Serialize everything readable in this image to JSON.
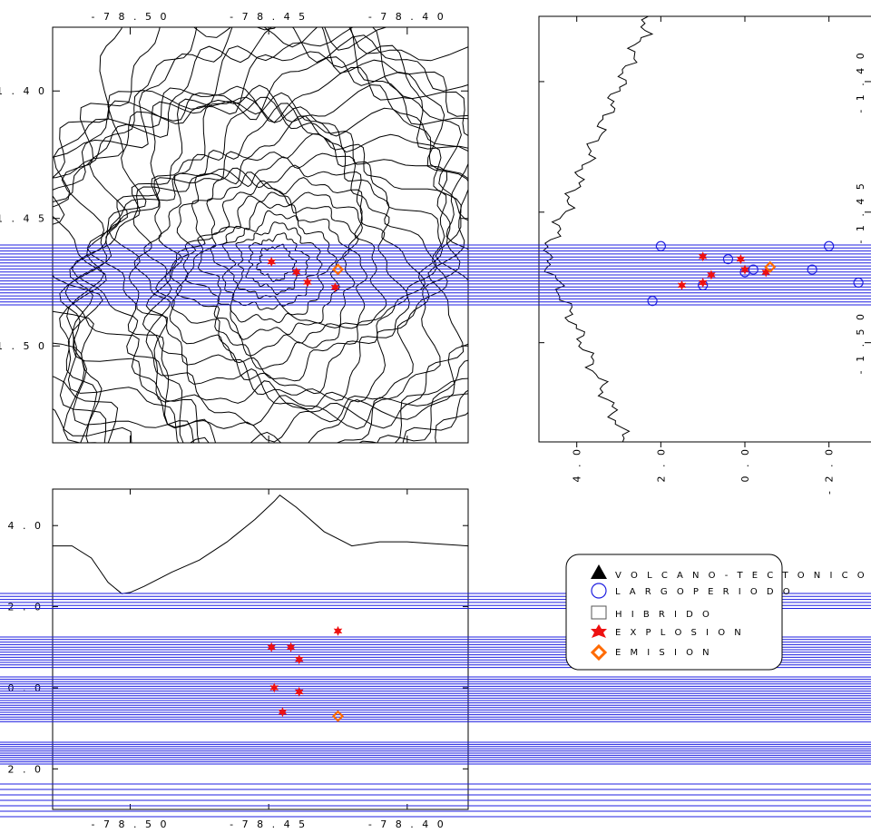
{
  "chart_data": [
    {
      "panel": "map",
      "type": "scatter",
      "title": "",
      "xlabel": "",
      "ylabel": "",
      "xlim": [
        -78.528,
        -78.378
      ],
      "ylim": [
        -1.538,
        -1.375
      ],
      "x_ticks": [
        "- 7 8 . 5 0",
        "- 7 8 . 4 5",
        "- 7 8 . 4 0"
      ],
      "x_tick_values": [
        -78.5,
        -78.45,
        -78.4
      ],
      "y_ticks": [
        "- 1 . 4 0",
        "- 1 . 4 5",
        "- 1 . 5 0"
      ],
      "y_tick_values": [
        -1.4,
        -1.45,
        -1.5
      ],
      "grid": false,
      "contour_summit": [
        -78.448,
        -1.467
      ],
      "contour_levels": 26,
      "series": [
        {
          "name": "E X P L O S I O N",
          "symbol": "star",
          "x": [
            -78.449,
            -78.44,
            -78.436,
            -78.426
          ],
          "y": [
            -1.467,
            -1.471,
            -1.475,
            -1.477
          ]
        },
        {
          "name": "E M I S I O N",
          "symbol": "diamond",
          "x": [
            -78.425
          ],
          "y": [
            -1.47
          ]
        }
      ]
    },
    {
      "panel": "depth-latitude",
      "type": "scatter",
      "title": "",
      "xlim": [
        4.9,
        -3.0
      ],
      "ylim": [
        -1.538,
        -1.375
      ],
      "x_ticks": [
        "4 . 0",
        "2 . 0",
        "0 . 0",
        "- 2 . 0"
      ],
      "x_tick_values": [
        4.0,
        2.0,
        0.0,
        -2.0
      ],
      "y_ticks": [
        "- 1 . 4 0",
        "- 1 . 4 5",
        "- 1 . 5 0"
      ],
      "y_tick_values": [
        -1.4,
        -1.45,
        -1.5
      ],
      "grid": false,
      "series": [
        {
          "name": "L A R G O  P E R I O D O",
          "symbol": "circle",
          "x": [
            2.0,
            2.2,
            1.0,
            0.4,
            0.0,
            -0.2,
            -2.0,
            -2.7,
            -1.6
          ],
          "y": [
            -1.463,
            -1.484,
            -1.478,
            -1.468,
            -1.473,
            -1.472,
            -1.463,
            -1.477,
            -1.472
          ]
        },
        {
          "name": "E X P L O S I O N",
          "symbol": "star",
          "x": [
            1.5,
            1.0,
            0.8,
            0.1,
            0.0,
            -0.5,
            1.0
          ],
          "y": [
            -1.478,
            -1.477,
            -1.474,
            -1.468,
            -1.472,
            -1.473,
            -1.467
          ]
        },
        {
          "name": "E M I S I O N",
          "symbol": "diamond",
          "x": [
            -0.6
          ],
          "y": [
            -1.471
          ]
        }
      ]
    },
    {
      "panel": "longitude-depth",
      "type": "scatter",
      "title": "",
      "xlim": [
        -78.528,
        -78.378
      ],
      "ylim": [
        -3.0,
        4.9
      ],
      "x_ticks": [
        "- 7 8 . 5 0",
        "- 7 8 . 4 5",
        "- 7 8 . 4 0"
      ],
      "x_tick_values": [
        -78.5,
        -78.45,
        -78.4
      ],
      "y_ticks": [
        "4 . 0",
        "2 . 0",
        "0 . 0",
        "- 2 . 0"
      ],
      "y_tick_values": [
        4.0,
        2.0,
        0.0,
        -2.0
      ],
      "grid": false,
      "topography_x": [
        -78.528,
        -78.521,
        -78.514,
        -78.511,
        -78.508,
        -78.503,
        -78.5,
        -78.495,
        -78.485,
        -78.475,
        -78.465,
        -78.455,
        -78.448,
        -78.446,
        -78.44,
        -78.43,
        -78.42,
        -78.41,
        -78.4,
        -78.39,
        -78.378
      ],
      "topography_y": [
        3.5,
        3.5,
        3.2,
        2.9,
        2.6,
        2.32,
        2.35,
        2.5,
        2.85,
        3.15,
        3.6,
        4.15,
        4.6,
        4.75,
        4.45,
        3.85,
        3.5,
        3.6,
        3.6,
        3.55,
        3.5
      ],
      "series": [
        {
          "name": "E X P L O S I O N",
          "symbol": "star",
          "x": [
            -78.449,
            -78.442,
            -78.439,
            -78.425,
            -78.448,
            -78.445,
            -78.439
          ],
          "y": [
            1.0,
            1.0,
            0.7,
            1.4,
            0.0,
            -0.6,
            -0.1
          ]
        },
        {
          "name": "E M I S I O N",
          "symbol": "diamond",
          "x": [
            -78.425
          ],
          "y": [
            -0.7
          ]
        }
      ]
    }
  ],
  "legend": {
    "items": [
      {
        "label": "V O L C A N O - T E C T O N I C O",
        "symbol": "triangle",
        "color": "#000000"
      },
      {
        "label": "L A R G O  P E R I O D O",
        "symbol": "circle",
        "color": "#1f1fe0"
      },
      {
        "label": "H I B R I D O",
        "symbol": "square",
        "color": "#000000"
      },
      {
        "label": "E X P L O S I O N",
        "symbol": "star",
        "color": "#ee1111"
      },
      {
        "label": "E M I S I O N",
        "symbol": "diamond",
        "color": "#ff6a00"
      }
    ]
  },
  "colors": {
    "axis": "#000000",
    "contour": "#000000",
    "stripe": "#1f1fe0",
    "explosion": "#ee1111",
    "largo_periodo": "#1f1fe0",
    "emision": "#ff6a00"
  }
}
